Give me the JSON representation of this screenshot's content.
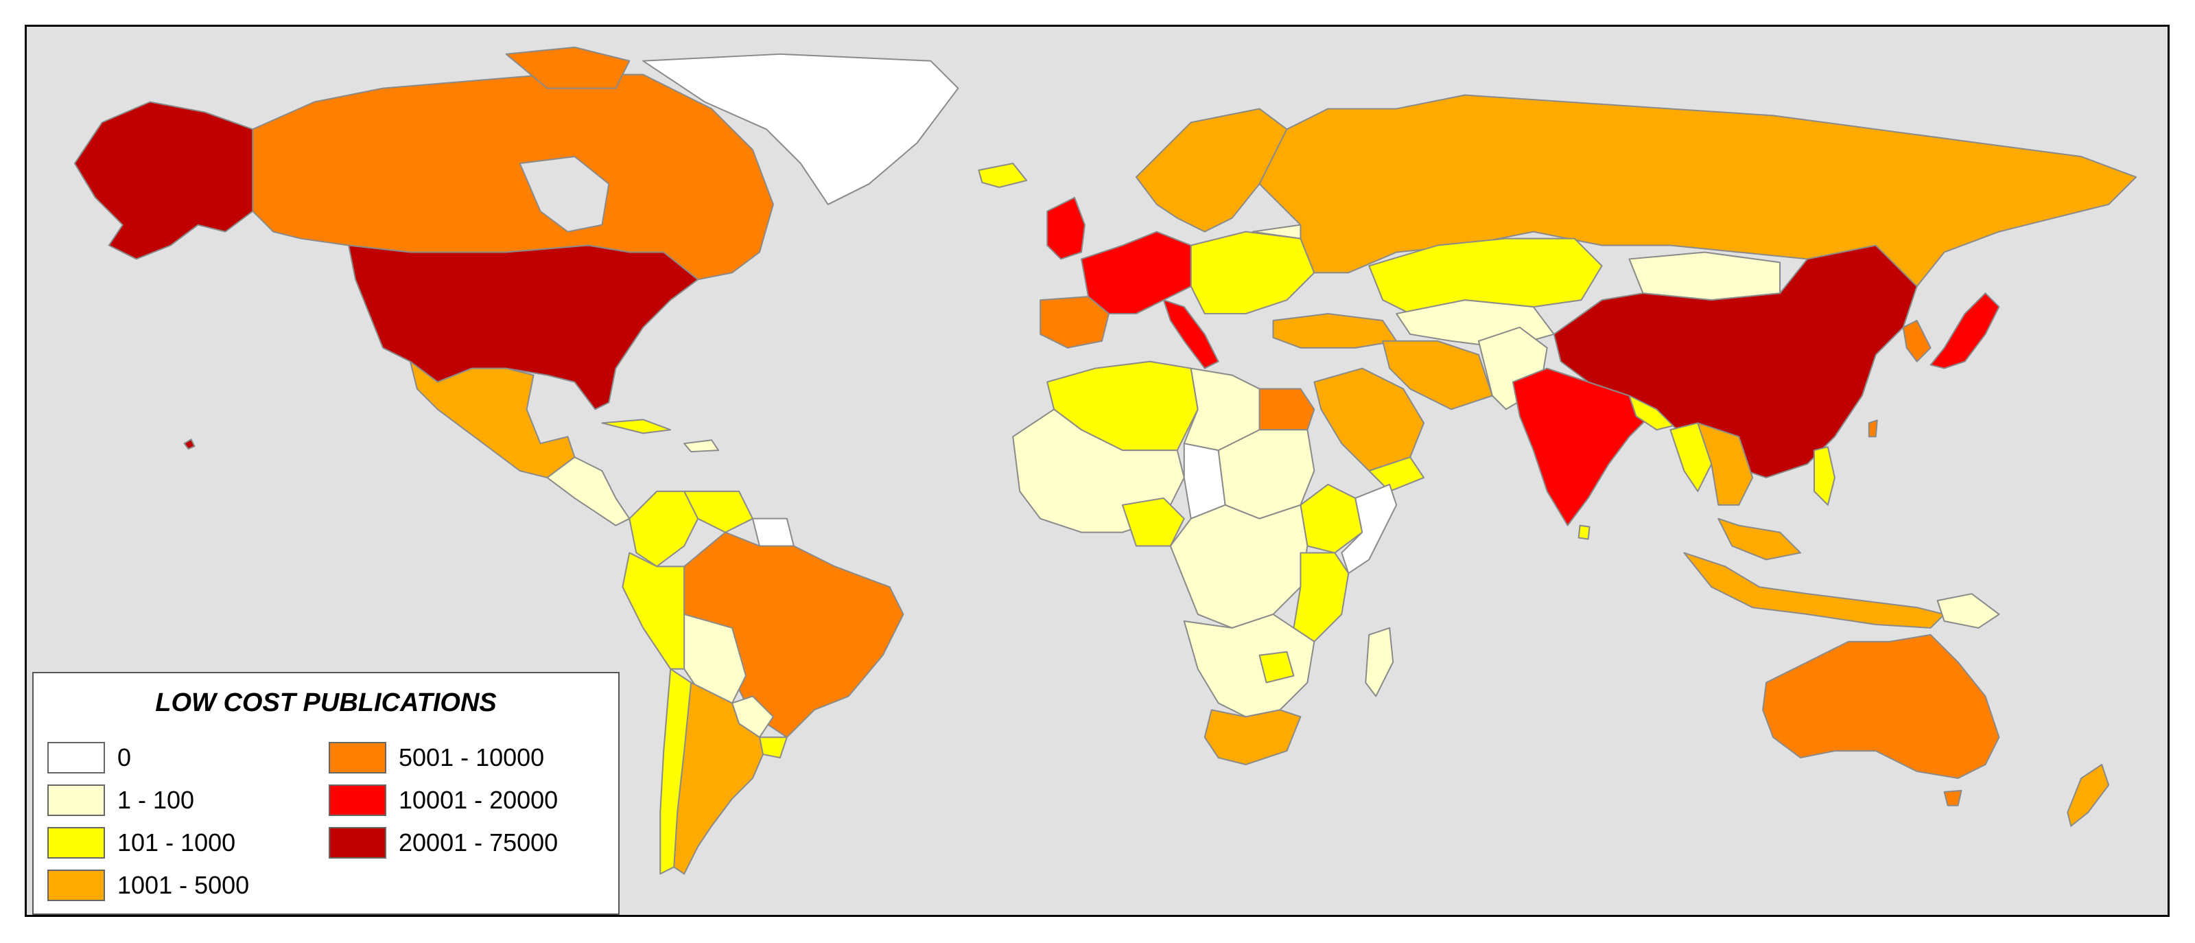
{
  "legend": {
    "title": "LOW COST PUBLICATIONS",
    "items": [
      {
        "label": "0",
        "color": "#ffffff"
      },
      {
        "label": "1 - 100",
        "color": "#ffffcc"
      },
      {
        "label": "101 - 1000",
        "color": "#ffff00"
      },
      {
        "label": "1001 - 5000",
        "color": "#ffaa00"
      },
      {
        "label": "5001 - 10000",
        "color": "#ff7f00"
      },
      {
        "label": "10001 - 20000",
        "color": "#ff0000"
      },
      {
        "label": "20001 - 75000",
        "color": "#c00000"
      }
    ]
  },
  "colors": {
    "ocean": "#e1e1e1",
    "border": "#7a7a7a"
  }
}
